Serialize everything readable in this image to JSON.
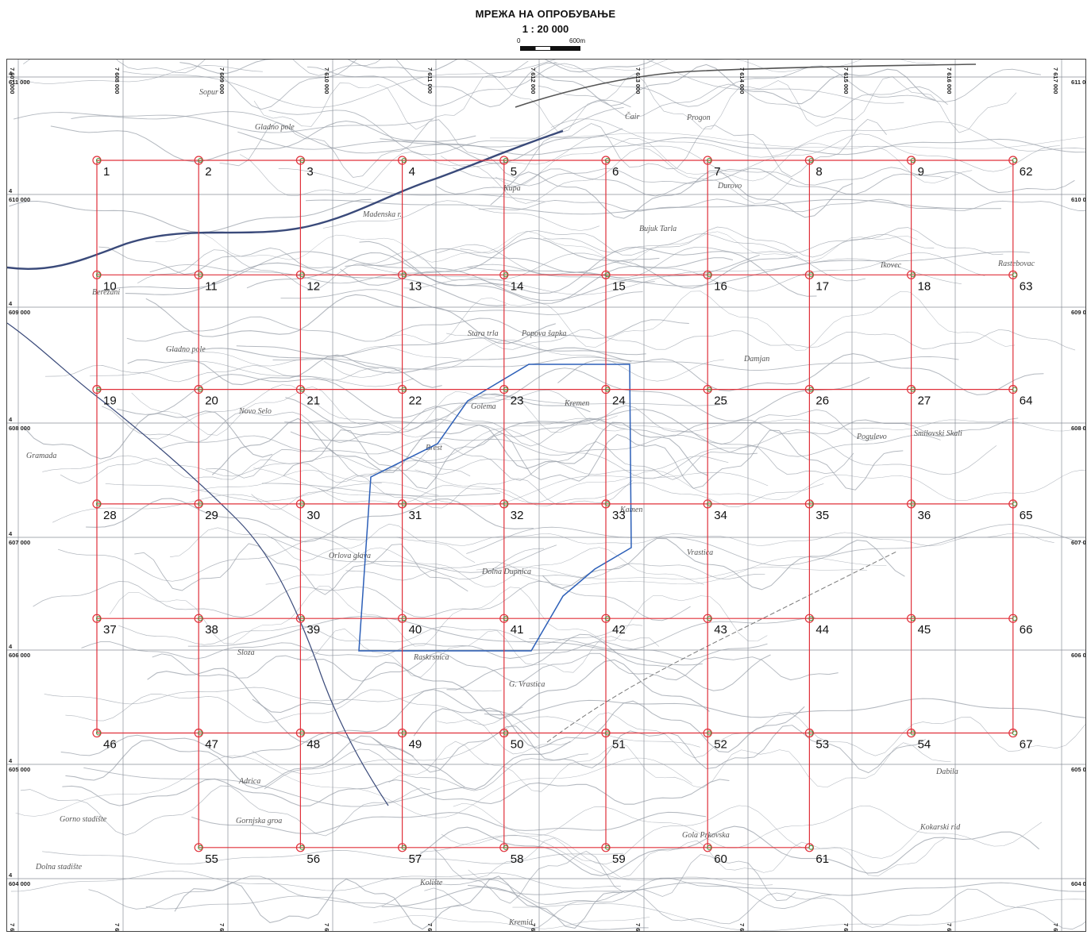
{
  "header": {
    "title": "МРЕЖА НА ОПРОБУВАЊЕ",
    "scale": "1 : 20 000",
    "scale_bar_start": "0",
    "scale_bar_end": "600m"
  },
  "colors": {
    "grid_line": "#e0303a",
    "sample_marker": "#3a9a3a",
    "boundary": "#2c5fb8",
    "river": "#3a4a7a",
    "contour": "#9aa0aa",
    "coord_grid": "#8a8f99"
  },
  "coordinate_labels": {
    "top": [
      "7 607 000",
      "7 608 000",
      "7 609 000",
      "7 610 000",
      "7 611 000",
      "7 612 000",
      "7 613 000",
      "7 614 000",
      "7 615 000",
      "7 616 000",
      "7 617 000"
    ],
    "left": [
      "4 611 000",
      "4 610 000",
      "4 609 000",
      "4 608 000",
      "4 607 000",
      "4 606 000",
      "4 605 000",
      "4 604 000"
    ]
  },
  "sampling_grid": {
    "rows": [
      [
        "1",
        "2",
        "3",
        "4",
        "5",
        "6",
        "7",
        "8",
        "9",
        "62"
      ],
      [
        "10",
        "11",
        "12",
        "13",
        "14",
        "15",
        "16",
        "17",
        "18",
        "63"
      ],
      [
        "19",
        "20",
        "21",
        "22",
        "23",
        "24",
        "25",
        "26",
        "27",
        "64"
      ],
      [
        "28",
        "29",
        "30",
        "31",
        "32",
        "33",
        "34",
        "35",
        "36",
        "65"
      ],
      [
        "37",
        "38",
        "39",
        "40",
        "41",
        "42",
        "43",
        "44",
        "45",
        "66"
      ],
      [
        "46",
        "47",
        "48",
        "49",
        "50",
        "51",
        "52",
        "53",
        "54",
        "67"
      ],
      [
        "",
        "55",
        "56",
        "57",
        "58",
        "59",
        "60",
        "61",
        "",
        ""
      ]
    ]
  },
  "place_names": [
    "Sopur",
    "Gladno pole",
    "Čair",
    "Progon",
    "Durovo",
    "Kupa",
    "Madenska r.",
    "Bujuk Tarla",
    "Ikovec",
    "Rastebovac",
    "Berezani",
    "Gladno pole",
    "Stara trla",
    "Popova šapka",
    "Damjan",
    "Novo Selo",
    "Golema",
    "Brest",
    "Pogulevo",
    "Smilovski Skali",
    "Gramada",
    "Orlova glava",
    "Vrastica",
    "Kremen",
    "Kamen",
    "Dolna Dupnica",
    "Sloza",
    "Raskrsnica",
    "G. Vrastica",
    "Adrica",
    "Gornjska groa",
    "Gola Prkovska",
    "Kolište",
    "Kokarski rid",
    "Kremid",
    "Dabila",
    "Gorno stadište",
    "Dolna stadište"
  ]
}
